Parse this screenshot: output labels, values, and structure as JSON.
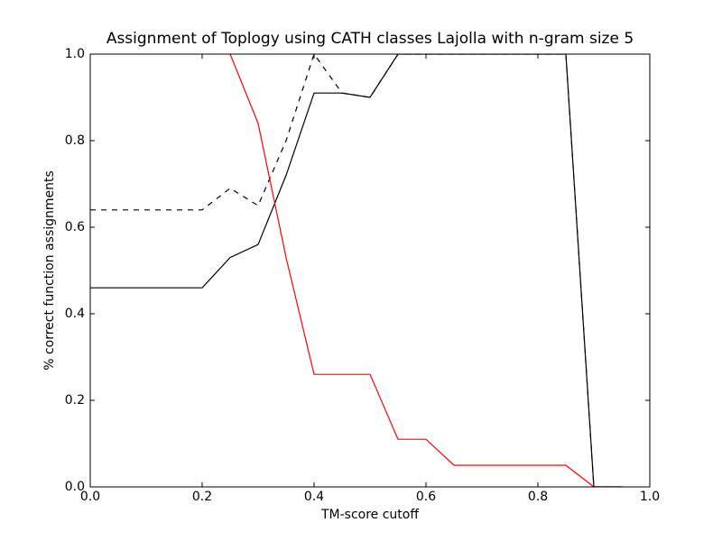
{
  "chart_data": {
    "type": "line",
    "title": "Assignment of Toplogy using CATH classes Lajolla with n-gram size 5",
    "x_label": "TM-score cutoff",
    "y_label": "% correct function assignments",
    "x": [
      0,
      0.05,
      0.1,
      0.15,
      0.2,
      0.25,
      0.3,
      0.35,
      0.4,
      0.45,
      0.5,
      0.55,
      0.6,
      0.65,
      0.7,
      0.75,
      0.8,
      0.85,
      0.9,
      0.95
    ],
    "series": [
      {
        "color": "#000000",
        "linestyle": "solid",
        "values": [
          0.46,
          0.46,
          0.46,
          0.46,
          0.46,
          0.53,
          0.56,
          0.72,
          0.91,
          0.91,
          0.9,
          1.0,
          1.0,
          1.0,
          1.0,
          1.0,
          1.0,
          1.0,
          0.0,
          0.0
        ]
      },
      {
        "color": "#000000",
        "linestyle": "dashed",
        "values": [
          0.64,
          0.64,
          0.64,
          0.64,
          0.64,
          0.69,
          0.65,
          0.8,
          1.0,
          0.91,
          0.9,
          1.0,
          1.0,
          1.0,
          1.0,
          1.0,
          1.0,
          1.0,
          0.0,
          0.0
        ]
      },
      {
        "color": "#ff0000",
        "linestyle": "solid",
        "values": [
          null,
          null,
          null,
          null,
          null,
          1.0,
          0.84,
          0.53,
          0.26,
          0.26,
          0.26,
          0.11,
          0.11,
          0.05,
          0.05,
          0.05,
          0.05,
          0.05,
          0.0,
          0.0
        ]
      }
    ],
    "xlim": [
      0,
      1
    ],
    "ylim": [
      0,
      1
    ],
    "xticks": [
      {
        "value": 0,
        "label": "0.0"
      },
      0.2,
      0.4,
      0.6,
      0.8,
      {
        "value": 1,
        "label": "1.0"
      }
    ],
    "yticks": [
      {
        "value": 0,
        "label": "0.0"
      },
      0.2,
      0.4,
      0.6,
      0.8,
      {
        "value": 1,
        "label": "1.0"
      }
    ]
  }
}
